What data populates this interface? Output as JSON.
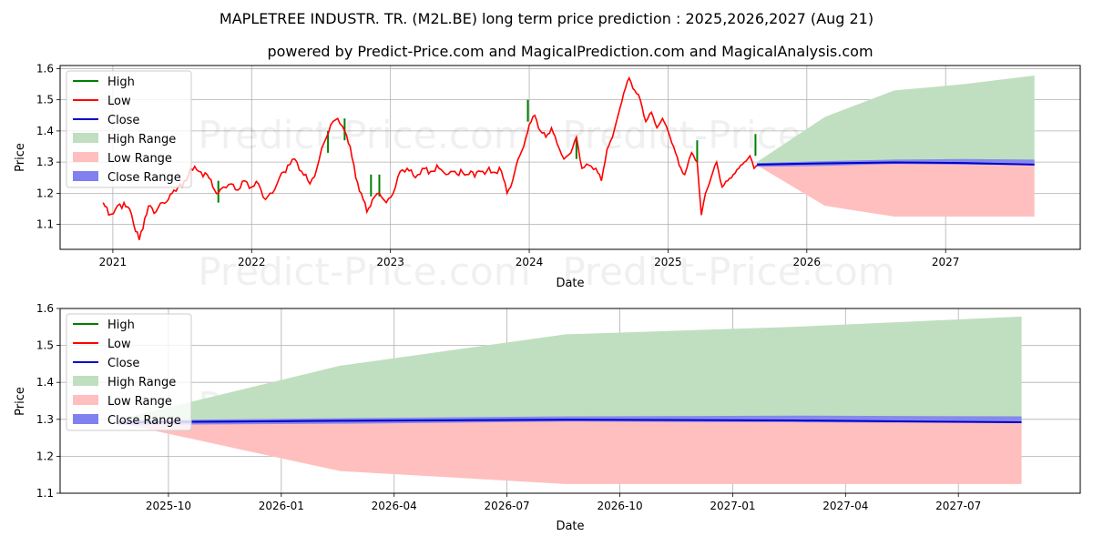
{
  "header": {
    "title": "MAPLETREE INDUSTR. TR. (M2L.BE) long term price prediction : 2025,2026,2027 (Aug 21)",
    "subtitle": "powered by Predict-Price.com and MagicalPrediction.com and MagicalAnalysis.com"
  },
  "watermark": "Predict-Price.com",
  "colors": {
    "high": "#008000",
    "low": "#ff0000",
    "close": "#0000cc",
    "high_range": "#c0dfc0",
    "low_range": "#ffbfbf",
    "close_range": "#8080f0"
  },
  "chart_data": [
    {
      "type": "line",
      "name": "long-term",
      "xlabel": "Date",
      "ylabel": "Price",
      "x_ticks": [
        "2021",
        "2022",
        "2023",
        "2024",
        "2025",
        "2026",
        "2027"
      ],
      "x_tick_years": [
        2021,
        2022,
        2023,
        2024,
        2025,
        2026,
        2027
      ],
      "xlim": [
        2020.62,
        2027.97
      ],
      "ylim": [
        1.02,
        1.61
      ],
      "y_ticks": [
        "1.1",
        "1.2",
        "1.3",
        "1.4",
        "1.5",
        "1.6"
      ],
      "y_tick_values": [
        1.1,
        1.2,
        1.3,
        1.4,
        1.5,
        1.6
      ],
      "grid": true,
      "legend": [
        "High",
        "Low",
        "Close",
        "High Range",
        "Low Range",
        "Close Range"
      ],
      "history_low": [
        [
          2020.93,
          1.17
        ],
        [
          2020.97,
          1.13
        ],
        [
          2021.02,
          1.15
        ],
        [
          2021.08,
          1.17
        ],
        [
          2021.12,
          1.15
        ],
        [
          2021.15,
          1.1
        ],
        [
          2021.19,
          1.05
        ],
        [
          2021.23,
          1.12
        ],
        [
          2021.27,
          1.16
        ],
        [
          2021.31,
          1.14
        ],
        [
          2021.36,
          1.17
        ],
        [
          2021.4,
          1.18
        ],
        [
          2021.44,
          1.21
        ],
        [
          2021.5,
          1.22
        ],
        [
          2021.56,
          1.28
        ],
        [
          2021.62,
          1.27
        ],
        [
          2021.68,
          1.26
        ],
        [
          2021.72,
          1.22
        ],
        [
          2021.76,
          1.2
        ],
        [
          2021.8,
          1.22
        ],
        [
          2021.85,
          1.23
        ],
        [
          2021.9,
          1.21
        ],
        [
          2021.95,
          1.24
        ],
        [
          2022.0,
          1.22
        ],
        [
          2022.05,
          1.23
        ],
        [
          2022.1,
          1.18
        ],
        [
          2022.15,
          1.2
        ],
        [
          2022.2,
          1.25
        ],
        [
          2022.26,
          1.29
        ],
        [
          2022.31,
          1.31
        ],
        [
          2022.36,
          1.27
        ],
        [
          2022.42,
          1.23
        ],
        [
          2022.47,
          1.28
        ],
        [
          2022.52,
          1.36
        ],
        [
          2022.57,
          1.42
        ],
        [
          2022.62,
          1.44
        ],
        [
          2022.67,
          1.4
        ],
        [
          2022.71,
          1.35
        ],
        [
          2022.75,
          1.25
        ],
        [
          2022.79,
          1.2
        ],
        [
          2022.83,
          1.14
        ],
        [
          2022.87,
          1.18
        ],
        [
          2022.92,
          1.2
        ],
        [
          2022.97,
          1.17
        ],
        [
          2023.02,
          1.2
        ],
        [
          2023.07,
          1.27
        ],
        [
          2023.12,
          1.28
        ],
        [
          2023.18,
          1.25
        ],
        [
          2023.23,
          1.28
        ],
        [
          2023.29,
          1.27
        ],
        [
          2023.35,
          1.28
        ],
        [
          2023.4,
          1.26
        ],
        [
          2023.45,
          1.27
        ],
        [
          2023.55,
          1.26
        ],
        [
          2023.65,
          1.27
        ],
        [
          2023.8,
          1.27
        ],
        [
          2023.84,
          1.2
        ],
        [
          2023.88,
          1.24
        ],
        [
          2023.92,
          1.31
        ],
        [
          2023.96,
          1.35
        ],
        [
          2024.0,
          1.42
        ],
        [
          2024.04,
          1.45
        ],
        [
          2024.08,
          1.4
        ],
        [
          2024.12,
          1.38
        ],
        [
          2024.16,
          1.41
        ],
        [
          2024.2,
          1.36
        ],
        [
          2024.25,
          1.31
        ],
        [
          2024.3,
          1.33
        ],
        [
          2024.34,
          1.38
        ],
        [
          2024.38,
          1.28
        ],
        [
          2024.43,
          1.29
        ],
        [
          2024.48,
          1.28
        ],
        [
          2024.52,
          1.24
        ],
        [
          2024.56,
          1.34
        ],
        [
          2024.6,
          1.38
        ],
        [
          2024.64,
          1.45
        ],
        [
          2024.68,
          1.52
        ],
        [
          2024.72,
          1.57
        ],
        [
          2024.76,
          1.53
        ],
        [
          2024.8,
          1.5
        ],
        [
          2024.84,
          1.43
        ],
        [
          2024.88,
          1.46
        ],
        [
          2024.92,
          1.41
        ],
        [
          2024.96,
          1.44
        ],
        [
          2025.0,
          1.4
        ],
        [
          2025.04,
          1.35
        ],
        [
          2025.08,
          1.29
        ],
        [
          2025.12,
          1.26
        ],
        [
          2025.17,
          1.33
        ],
        [
          2025.21,
          1.3
        ],
        [
          2025.24,
          1.13
        ],
        [
          2025.27,
          1.2
        ],
        [
          2025.31,
          1.25
        ],
        [
          2025.35,
          1.3
        ],
        [
          2025.39,
          1.22
        ],
        [
          2025.43,
          1.24
        ],
        [
          2025.47,
          1.26
        ],
        [
          2025.51,
          1.28
        ],
        [
          2025.55,
          1.3
        ],
        [
          2025.59,
          1.32
        ],
        [
          2025.62,
          1.28
        ],
        [
          2025.64,
          1.29
        ]
      ],
      "high_spikes": [
        [
          2021.76,
          1.24
        ],
        [
          2022.55,
          1.4
        ],
        [
          2022.67,
          1.44
        ],
        [
          2022.86,
          1.26
        ],
        [
          2022.92,
          1.26
        ],
        [
          2023.99,
          1.5
        ],
        [
          2024.34,
          1.38
        ],
        [
          2025.21,
          1.37
        ],
        [
          2025.63,
          1.39
        ]
      ],
      "forecast_x": [
        2025.64,
        2026.13,
        2026.63,
        2027.13,
        2027.64
      ],
      "forecast_high": [
        1.3,
        1.445,
        1.53,
        1.55,
        1.578
      ],
      "forecast_low": [
        1.29,
        1.16,
        1.125,
        1.125,
        1.125
      ],
      "forecast_close_upper": [
        1.297,
        1.303,
        1.308,
        1.31,
        1.308
      ],
      "forecast_close_lower": [
        1.285,
        1.288,
        1.294,
        1.292,
        1.29
      ],
      "forecast_close": [
        1.292,
        1.296,
        1.299,
        1.297,
        1.292
      ]
    },
    {
      "type": "line",
      "name": "forecast-zoom",
      "xlabel": "Date",
      "ylabel": "Price",
      "x_ticks": [
        "2025-10",
        "2026-01",
        "2026-04",
        "2026-07",
        "2026-10",
        "2027-01",
        "2027-04",
        "2027-07"
      ],
      "x_tick_values": [
        2025.75,
        2026.0,
        2026.25,
        2026.5,
        2026.75,
        2027.0,
        2027.25,
        2027.5
      ],
      "xlim": [
        2025.51,
        2027.77
      ],
      "ylim": [
        1.1,
        1.6
      ],
      "y_ticks": [
        "1.1",
        "1.2",
        "1.3",
        "1.4",
        "1.5",
        "1.6"
      ],
      "y_tick_values": [
        1.1,
        1.2,
        1.3,
        1.4,
        1.5,
        1.6
      ],
      "grid": true,
      "legend": [
        "High",
        "Low",
        "Close",
        "High Range",
        "Low Range",
        "Close Range"
      ],
      "forecast_x": [
        2025.64,
        2026.13,
        2026.63,
        2027.13,
        2027.64
      ],
      "forecast_high": [
        1.3,
        1.445,
        1.53,
        1.55,
        1.578
      ],
      "forecast_low": [
        1.29,
        1.16,
        1.125,
        1.125,
        1.125
      ],
      "forecast_close_upper": [
        1.297,
        1.303,
        1.308,
        1.31,
        1.308
      ],
      "forecast_close_lower": [
        1.285,
        1.288,
        1.294,
        1.292,
        1.29
      ],
      "forecast_close": [
        1.292,
        1.296,
        1.299,
        1.297,
        1.292
      ]
    }
  ]
}
